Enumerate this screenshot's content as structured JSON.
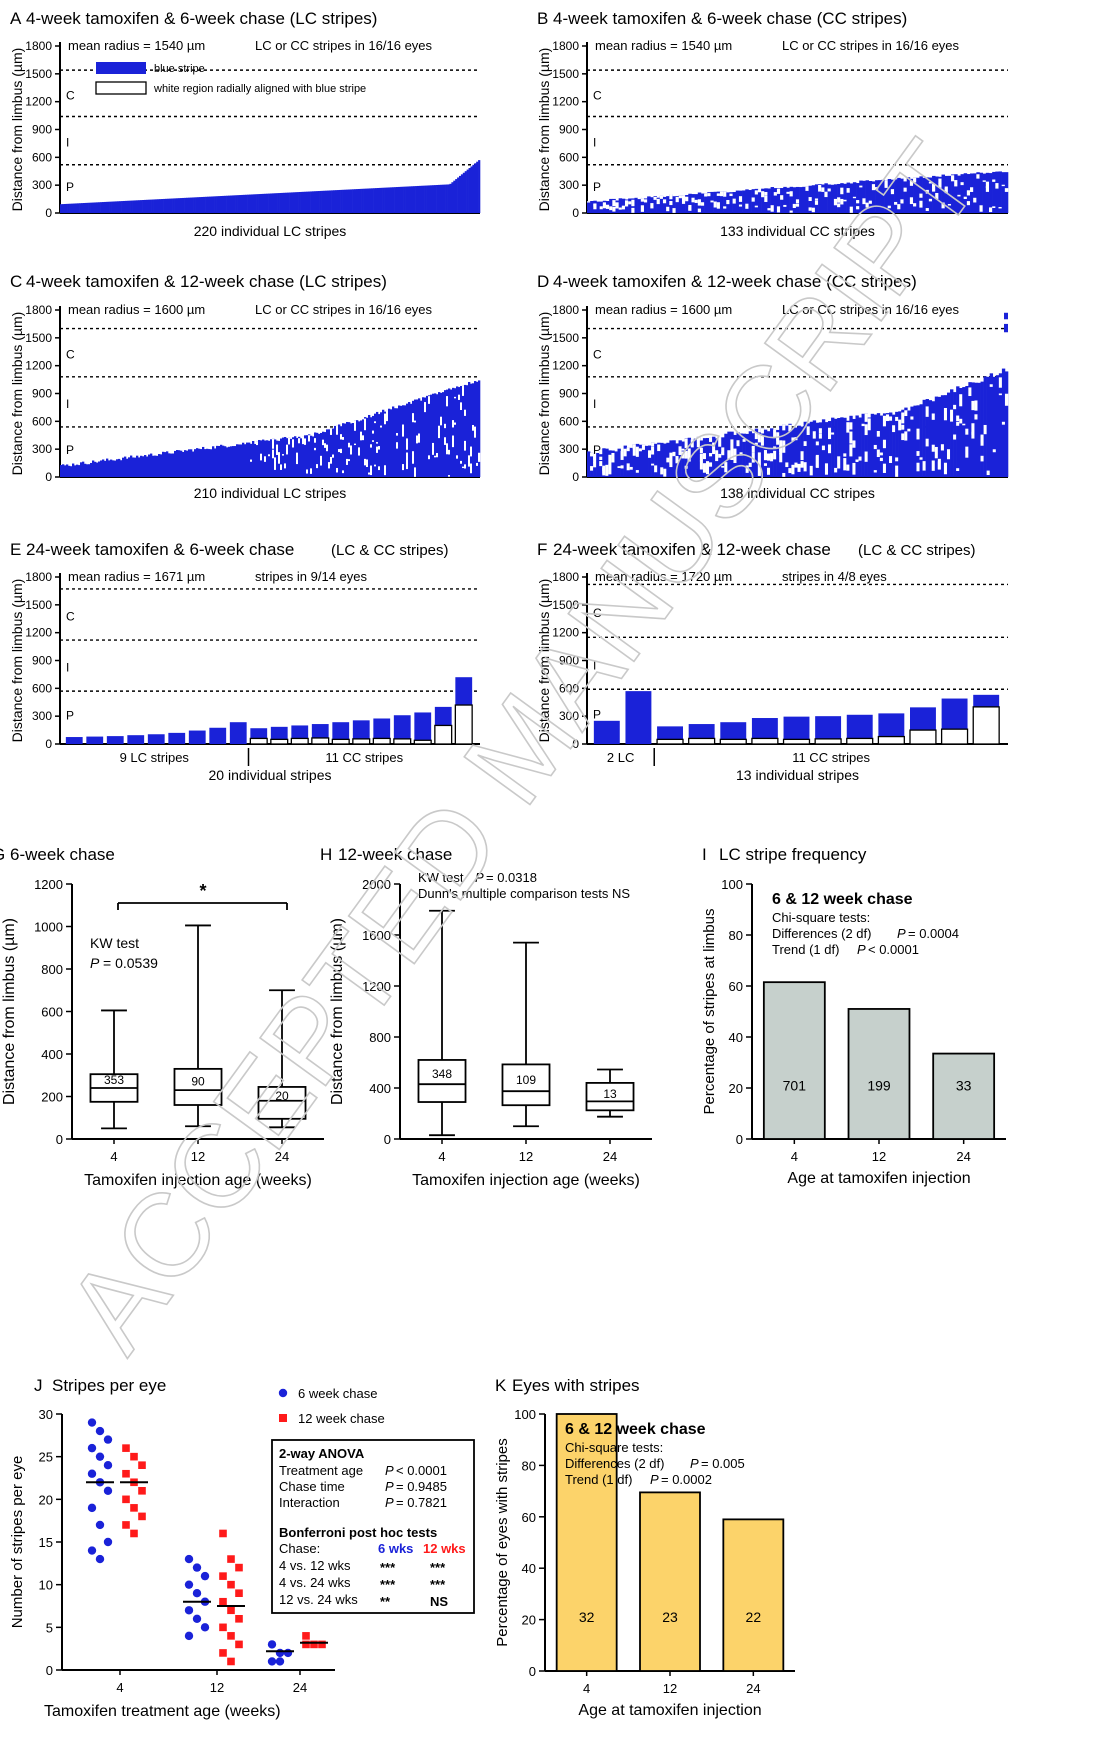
{
  "watermark": "ACCEPTED MANUSCRIPT",
  "colors": {
    "blue": "#1a22d8",
    "red": "#ff1a1a",
    "gray_fill": "#c6d0cc",
    "yellow_fill": "#fcd36a",
    "black": "#000000"
  },
  "panels_stripes": [
    {
      "letter": "A",
      "title": "4-week tamoxifen & 6-week chase (LC stripes)",
      "mean_text": "mean radius = 1540 µm",
      "eyes_text": "LC or CC stripes in 16/16 eyes",
      "ylabel": "Distance from limbus (µm)",
      "xlabel": "220 individual LC stripes",
      "ymax": 1800,
      "yticks": [
        "0",
        "300",
        "600",
        "900",
        "1200",
        "1500",
        "1800"
      ],
      "zones": [
        "C",
        "I",
        "P"
      ],
      "zone_lines": [
        520,
        1040,
        1540
      ],
      "legend": [
        "blue stripe",
        "white region radially aligned with blue stripe"
      ]
    },
    {
      "letter": "B",
      "title": "4-week tamoxifen & 6-week chase (CC stripes)",
      "mean_text": "mean radius = 1540 µm",
      "eyes_text": "LC or CC stripes in 16/16 eyes",
      "ylabel": "Distance from limbus (µm)",
      "xlabel": "133 individual CC stripes",
      "ymax": 1800,
      "yticks": [
        "0",
        "300",
        "600",
        "900",
        "1200",
        "1500",
        "1800"
      ],
      "zones": [
        "C",
        "I",
        "P"
      ],
      "zone_lines": [
        520,
        1040,
        1540
      ]
    },
    {
      "letter": "C",
      "title": "4-week tamoxifen & 12-week chase (LC stripes)",
      "mean_text": "mean radius = 1600 µm",
      "eyes_text": "LC or CC stripes in 16/16 eyes",
      "ylabel": "Distance from limbus (µm)",
      "xlabel": "210 individual LC stripes",
      "ymax": 1800,
      "yticks": [
        "0",
        "300",
        "600",
        "900",
        "1200",
        "1500",
        "1800"
      ],
      "zones": [
        "C",
        "I",
        "P"
      ],
      "zone_lines": [
        540,
        1080,
        1600
      ]
    },
    {
      "letter": "D",
      "title": "4-week tamoxifen & 12-week chase (CC stripes)",
      "mean_text": "mean radius = 1600 µm",
      "eyes_text": "LC or CC stripes in 16/16 eyes",
      "ylabel": "Distance from limbus (µm)",
      "xlabel": "138 individual CC stripes",
      "ymax": 1800,
      "yticks": [
        "0",
        "300",
        "600",
        "900",
        "1200",
        "1500",
        "1800"
      ],
      "zones": [
        "C",
        "I",
        "P"
      ],
      "zone_lines": [
        540,
        1080,
        1600
      ]
    },
    {
      "letter": "E",
      "title": "24-week tamoxifen & 6-week chase",
      "title_suffix": "(LC & CC stripes)",
      "mean_text": "mean radius = 1671 µm",
      "eyes_text": "stripes in 9/14 eyes",
      "ylabel": "Distance from limbus (µm)",
      "group_labels": [
        "9 LC stripes",
        "11 CC stripes"
      ],
      "xlabel": "20 individual stripes",
      "ymax": 1800,
      "yticks": [
        "0",
        "300",
        "600",
        "900",
        "1200",
        "1500",
        "1800"
      ],
      "zones": [
        "C",
        "I",
        "P"
      ],
      "zone_lines": [
        570,
        1120,
        1671
      ],
      "bars": [
        {
          "blue": 75,
          "white": 0
        },
        {
          "blue": 80,
          "white": 0
        },
        {
          "blue": 85,
          "white": 0
        },
        {
          "blue": 95,
          "white": 0
        },
        {
          "blue": 105,
          "white": 0
        },
        {
          "blue": 120,
          "white": 0
        },
        {
          "blue": 145,
          "white": 0
        },
        {
          "blue": 175,
          "white": 0
        },
        {
          "blue": 235,
          "white": 0
        },
        {
          "blue": 170,
          "white": 60
        },
        {
          "blue": 185,
          "white": 50
        },
        {
          "blue": 200,
          "white": 60
        },
        {
          "blue": 215,
          "white": 65
        },
        {
          "blue": 235,
          "white": 50
        },
        {
          "blue": 255,
          "white": 55
        },
        {
          "blue": 275,
          "white": 60
        },
        {
          "blue": 310,
          "white": 55
        },
        {
          "blue": 340,
          "white": 40
        },
        {
          "blue": 400,
          "white": 200
        },
        {
          "blue": 720,
          "white": 420
        }
      ]
    },
    {
      "letter": "F",
      "title": "24-week tamoxifen & 12-week chase",
      "title_suffix": "(LC & CC stripes)",
      "mean_text": "mean radius = 1720 µm",
      "eyes_text": "stripes in 4/8 eyes",
      "ylabel": "Distance from limbus (µm)",
      "group_labels": [
        "2 LC",
        "11 CC stripes"
      ],
      "xlabel": "13 individual stripes",
      "ymax": 1800,
      "yticks": [
        "0",
        "300",
        "600",
        "900",
        "1200",
        "1500",
        "1800"
      ],
      "zones": [
        "C",
        "I",
        "P"
      ],
      "zone_lines": [
        590,
        1150,
        1720
      ],
      "bars": [
        {
          "blue": 250,
          "white": 0
        },
        {
          "blue": 570,
          "white": 0
        },
        {
          "blue": 190,
          "white": 50
        },
        {
          "blue": 215,
          "white": 60
        },
        {
          "blue": 235,
          "white": 50
        },
        {
          "blue": 280,
          "white": 60
        },
        {
          "blue": 295,
          "white": 50
        },
        {
          "blue": 300,
          "white": 55
        },
        {
          "blue": 315,
          "white": 60
        },
        {
          "blue": 330,
          "white": 80
        },
        {
          "blue": 395,
          "white": 150
        },
        {
          "blue": 490,
          "white": 160
        },
        {
          "blue": 530,
          "white": 400
        }
      ]
    }
  ],
  "panel_g": {
    "letter": "G",
    "title": "6-week chase",
    "ylabel": "Distance from limbus (µm)",
    "xlabel": "Tamoxifen injection age (weeks)",
    "ymax": 1200,
    "yticks": [
      "0",
      "200",
      "400",
      "600",
      "800",
      "1000",
      "1200"
    ],
    "categories": [
      "4",
      "12",
      "24"
    ],
    "test_line1": "KW test",
    "test_line2": "= 0.0539",
    "sig_star": "*",
    "boxes": [
      {
        "min": 50,
        "q1": 175,
        "median": 240,
        "q3": 305,
        "max": 605,
        "n": "353"
      },
      {
        "min": 60,
        "q1": 160,
        "median": 230,
        "q3": 330,
        "max": 1005,
        "n": "90"
      },
      {
        "min": 55,
        "q1": 95,
        "median": 180,
        "q3": 245,
        "max": 700,
        "n": "20"
      }
    ]
  },
  "panel_h": {
    "letter": "H",
    "title": "12-week chase",
    "ylabel": "Distance from limbus (µm)",
    "xlabel": "Tamoxifen injection age (weeks)",
    "ymax": 2000,
    "yticks": [
      "0",
      "400",
      "800",
      "1200",
      "1600",
      "2000"
    ],
    "categories": [
      "4",
      "12",
      "24"
    ],
    "test_line1": "KW test",
    "test_p": "= 0.0318",
    "test_line2": "Dunn's multiple comparison tests NS",
    "boxes": [
      {
        "min": 30,
        "q1": 290,
        "median": 430,
        "q3": 620,
        "max": 1790,
        "n": "348"
      },
      {
        "min": 100,
        "q1": 265,
        "median": 375,
        "q3": 585,
        "max": 1540,
        "n": "109"
      },
      {
        "min": 175,
        "q1": 225,
        "median": 295,
        "q3": 440,
        "max": 545,
        "n": "13"
      }
    ]
  },
  "panel_i": {
    "letter": "I",
    "title": "LC stripe frequency",
    "ylabel": "Percentage of stripes at limbus",
    "xlabel": "Age at tamoxifen injection",
    "ymax": 100,
    "yticks": [
      "0",
      "20",
      "40",
      "60",
      "80",
      "100"
    ],
    "categories": [
      "4",
      "12",
      "24"
    ],
    "values": [
      61.5,
      51,
      33.5
    ],
    "counts": [
      "701",
      "199",
      "33"
    ],
    "legend_title": "6 & 12 week chase",
    "legend_lines": [
      "Chi-square tests:",
      "Differences (2 df)",
      "= 0.0004",
      "Trend (1 df)",
      "< 0.0001"
    ]
  },
  "panel_j": {
    "letter": "J",
    "title": "Stripes per eye",
    "ylabel": "Number of stripes per eye",
    "xlabel": "Tamoxifen treatment age (weeks)",
    "ymax": 30,
    "yticks": [
      "0",
      "5",
      "10",
      "15",
      "20",
      "25",
      "30"
    ],
    "categories": [
      "4",
      "12",
      "24"
    ],
    "series": [
      {
        "name": "6 week chase",
        "means": [
          22,
          8,
          2.2
        ],
        "points": [
          [
            29,
            28,
            27,
            26,
            25,
            24,
            23,
            22,
            21,
            19,
            17,
            15,
            14,
            13
          ],
          [
            13,
            12,
            11,
            10,
            9,
            8,
            7,
            6,
            5,
            4
          ],
          [
            3,
            2,
            2,
            1,
            1
          ]
        ]
      },
      {
        "name": "12 week chase",
        "means": [
          22,
          7.5,
          3.2
        ],
        "points": [
          [
            26,
            25,
            24,
            23,
            22,
            21,
            20,
            19,
            18,
            17,
            16
          ],
          [
            16,
            13,
            12,
            11,
            10,
            9,
            8,
            7,
            6,
            5,
            4,
            3,
            2,
            1
          ],
          [
            4,
            3,
            3,
            3
          ]
        ]
      }
    ],
    "anova_title": "2-way ANOVA",
    "anova_rows": [
      [
        "Treatment age",
        "< 0.0001"
      ],
      [
        "Chase time",
        "= 0.9485"
      ],
      [
        "Interaction",
        "= 0.7821"
      ]
    ],
    "posthoc_title": "Bonferroni post hoc tests",
    "posthoc_header": [
      "Chase:",
      "6 wks",
      "12 wks"
    ],
    "posthoc_rows": [
      [
        "4 vs. 12 wks",
        "***",
        "***"
      ],
      [
        "4 vs. 24 wks",
        "***",
        "***"
      ],
      [
        "12 vs. 24 wks",
        "**",
        "NS"
      ]
    ]
  },
  "panel_k": {
    "letter": "K",
    "title": "Eyes with stripes",
    "ylabel": "Percentage of eyes with stripes",
    "xlabel": "Age at tamoxifen injection",
    "ymax": 100,
    "yticks": [
      "0",
      "20",
      "40",
      "60",
      "80",
      "100"
    ],
    "categories": [
      "4",
      "12",
      "24"
    ],
    "values": [
      100,
      69.5,
      59
    ],
    "counts": [
      "32",
      "23",
      "22"
    ],
    "legend_title": "6 & 12 week chase",
    "legend_lines": [
      "Chi-square tests:",
      "Differences (2 df)",
      "= 0.005",
      "Trend (1 df)",
      "= 0.0002"
    ]
  }
}
